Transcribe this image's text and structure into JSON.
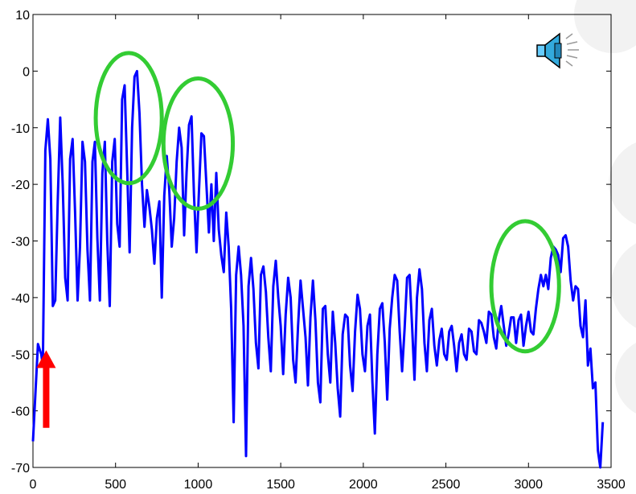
{
  "chart_data": {
    "type": "line",
    "title": "",
    "xlabel": "",
    "ylabel": "",
    "xlim": [
      0,
      3500
    ],
    "ylim": [
      -70,
      10
    ],
    "x_ticks": [
      0,
      500,
      1000,
      1500,
      2000,
      2500,
      3000,
      3500
    ],
    "y_ticks": [
      10,
      0,
      -10,
      -20,
      -30,
      -40,
      -50,
      -60,
      -70
    ],
    "grid": false,
    "legend": "none",
    "series": [
      {
        "color": "#0000ff",
        "points": [
          [
            0,
            -65.4
          ],
          [
            30,
            -48.2
          ],
          [
            50,
            -50.0
          ],
          [
            60,
            -52.0
          ],
          [
            75,
            -14.0
          ],
          [
            90,
            -8.5
          ],
          [
            105,
            -15.5
          ],
          [
            120,
            -41.5
          ],
          [
            135,
            -40.5
          ],
          [
            150,
            -23.0
          ],
          [
            165,
            -8.2
          ],
          [
            180,
            -20.0
          ],
          [
            195,
            -36.5
          ],
          [
            210,
            -40.5
          ],
          [
            225,
            -15.5
          ],
          [
            240,
            -12.0
          ],
          [
            255,
            -25.0
          ],
          [
            270,
            -40.5
          ],
          [
            285,
            -31.0
          ],
          [
            300,
            -12.5
          ],
          [
            315,
            -16.0
          ],
          [
            330,
            -31.5
          ],
          [
            345,
            -40.5
          ],
          [
            360,
            -16.0
          ],
          [
            375,
            -12.5
          ],
          [
            390,
            -29.5
          ],
          [
            405,
            -40.5
          ],
          [
            420,
            -18.0
          ],
          [
            435,
            -12.5
          ],
          [
            450,
            -30.0
          ],
          [
            465,
            -41.5
          ],
          [
            480,
            -16.0
          ],
          [
            495,
            -12.0
          ],
          [
            510,
            -27.0
          ],
          [
            525,
            -31.0
          ],
          [
            540,
            -5.0
          ],
          [
            555,
            -2.5
          ],
          [
            570,
            -17.0
          ],
          [
            585,
            -32.0
          ],
          [
            600,
            -10.0
          ],
          [
            615,
            -1.0
          ],
          [
            630,
            0.0
          ],
          [
            645,
            -7.5
          ],
          [
            660,
            -20.0
          ],
          [
            675,
            -27.5
          ],
          [
            690,
            -21.0
          ],
          [
            705,
            -24.0
          ],
          [
            720,
            -28.0
          ],
          [
            735,
            -34.0
          ],
          [
            750,
            -26.0
          ],
          [
            765,
            -23.0
          ],
          [
            780,
            -40.0
          ],
          [
            795,
            -22.0
          ],
          [
            810,
            -15.0
          ],
          [
            825,
            -21.0
          ],
          [
            840,
            -31.0
          ],
          [
            855,
            -26.0
          ],
          [
            870,
            -16.0
          ],
          [
            885,
            -10.0
          ],
          [
            900,
            -13.5
          ],
          [
            915,
            -29.0
          ],
          [
            930,
            -18.0
          ],
          [
            945,
            -9.5
          ],
          [
            960,
            -8.0
          ],
          [
            975,
            -22.0
          ],
          [
            990,
            -32.0
          ],
          [
            1005,
            -21.0
          ],
          [
            1020,
            -11.0
          ],
          [
            1035,
            -11.5
          ],
          [
            1050,
            -20.0
          ],
          [
            1065,
            -28.5
          ],
          [
            1080,
            -20.0
          ],
          [
            1095,
            -30.0
          ],
          [
            1110,
            -18.0
          ],
          [
            1125,
            -28.0
          ],
          [
            1140,
            -32.5
          ],
          [
            1155,
            -35.5
          ],
          [
            1170,
            -25.0
          ],
          [
            1185,
            -31.0
          ],
          [
            1200,
            -42.0
          ],
          [
            1215,
            -62.0
          ],
          [
            1230,
            -36.0
          ],
          [
            1245,
            -31.0
          ],
          [
            1260,
            -36.0
          ],
          [
            1275,
            -45.0
          ],
          [
            1290,
            -68.0
          ],
          [
            1305,
            -38.0
          ],
          [
            1320,
            -33.0
          ],
          [
            1335,
            -38.5
          ],
          [
            1350,
            -48.0
          ],
          [
            1365,
            -52.5
          ],
          [
            1380,
            -36.0
          ],
          [
            1395,
            -34.5
          ],
          [
            1410,
            -39.0
          ],
          [
            1425,
            -47.0
          ],
          [
            1440,
            -53.0
          ],
          [
            1455,
            -38.0
          ],
          [
            1470,
            -33.5
          ],
          [
            1485,
            -40.0
          ],
          [
            1500,
            -45.0
          ],
          [
            1515,
            -53.5
          ],
          [
            1530,
            -43.0
          ],
          [
            1545,
            -36.5
          ],
          [
            1560,
            -40.0
          ],
          [
            1575,
            -51.0
          ],
          [
            1590,
            -55.0
          ],
          [
            1605,
            -45.0
          ],
          [
            1620,
            -37.0
          ],
          [
            1635,
            -42.0
          ],
          [
            1650,
            -47.0
          ],
          [
            1665,
            -55.5
          ],
          [
            1680,
            -43.5
          ],
          [
            1695,
            -37.0
          ],
          [
            1710,
            -44.0
          ],
          [
            1725,
            -55.0
          ],
          [
            1740,
            -58.5
          ],
          [
            1755,
            -42.0
          ],
          [
            1770,
            -41.5
          ],
          [
            1785,
            -50.0
          ],
          [
            1800,
            -55.0
          ],
          [
            1815,
            -42.5
          ],
          [
            1830,
            -48.0
          ],
          [
            1845,
            -56.0
          ],
          [
            1860,
            -61.0
          ],
          [
            1875,
            -46.5
          ],
          [
            1890,
            -43.0
          ],
          [
            1905,
            -43.5
          ],
          [
            1920,
            -52.0
          ],
          [
            1935,
            -56.5
          ],
          [
            1950,
            -46.0
          ],
          [
            1965,
            -39.5
          ],
          [
            1980,
            -42.0
          ],
          [
            1995,
            -50.0
          ],
          [
            2010,
            -53.0
          ],
          [
            2025,
            -45.0
          ],
          [
            2040,
            -43.0
          ],
          [
            2055,
            -55.0
          ],
          [
            2070,
            -64.0
          ],
          [
            2085,
            -50.0
          ],
          [
            2100,
            -42.0
          ],
          [
            2115,
            -41.0
          ],
          [
            2130,
            -48.0
          ],
          [
            2145,
            -58.0
          ],
          [
            2160,
            -45.5
          ],
          [
            2175,
            -40.0
          ],
          [
            2190,
            -36.0
          ],
          [
            2205,
            -37.0
          ],
          [
            2220,
            -46.0
          ],
          [
            2235,
            -53.0
          ],
          [
            2250,
            -45.5
          ],
          [
            2265,
            -36.5
          ],
          [
            2280,
            -36.0
          ],
          [
            2295,
            -45.0
          ],
          [
            2310,
            -54.5
          ],
          [
            2325,
            -40.0
          ],
          [
            2340,
            -35.0
          ],
          [
            2355,
            -38.5
          ],
          [
            2370,
            -48.0
          ],
          [
            2385,
            -53.0
          ],
          [
            2400,
            -44.0
          ],
          [
            2415,
            -42.0
          ],
          [
            2430,
            -48.5
          ],
          [
            2445,
            -52.0
          ],
          [
            2460,
            -47.5
          ],
          [
            2475,
            -45.5
          ],
          [
            2490,
            -50.0
          ],
          [
            2505,
            -51.0
          ],
          [
            2520,
            -46.0
          ],
          [
            2535,
            -45.0
          ],
          [
            2550,
            -48.5
          ],
          [
            2565,
            -53.0
          ],
          [
            2580,
            -48.0
          ],
          [
            2595,
            -46.5
          ],
          [
            2610,
            -50.0
          ],
          [
            2625,
            -51.0
          ],
          [
            2640,
            -45.5
          ],
          [
            2655,
            -46.0
          ],
          [
            2670,
            -49.5
          ],
          [
            2685,
            -50.0
          ],
          [
            2700,
            -44.0
          ],
          [
            2715,
            -44.5
          ],
          [
            2730,
            -46.0
          ],
          [
            2745,
            -48.0
          ],
          [
            2760,
            -42.5
          ],
          [
            2775,
            -43.0
          ],
          [
            2790,
            -47.0
          ],
          [
            2805,
            -49.0
          ],
          [
            2820,
            -44.0
          ],
          [
            2835,
            -41.5
          ],
          [
            2850,
            -45.0
          ],
          [
            2865,
            -48.5
          ],
          [
            2880,
            -46.5
          ],
          [
            2895,
            -43.5
          ],
          [
            2910,
            -43.5
          ],
          [
            2925,
            -48.0
          ],
          [
            2940,
            -44.0
          ],
          [
            2955,
            -43.0
          ],
          [
            2970,
            -48.5
          ],
          [
            2985,
            -45.0
          ],
          [
            3000,
            -42.5
          ],
          [
            3015,
            -46.0
          ],
          [
            3030,
            -46.5
          ],
          [
            3045,
            -42.0
          ],
          [
            3060,
            -38.5
          ],
          [
            3075,
            -36.0
          ],
          [
            3090,
            -38.0
          ],
          [
            3105,
            -36.0
          ],
          [
            3120,
            -38.5
          ],
          [
            3135,
            -33.0
          ],
          [
            3150,
            -31.0
          ],
          [
            3165,
            -31.5
          ],
          [
            3180,
            -32.5
          ],
          [
            3195,
            -35.5
          ],
          [
            3210,
            -29.5
          ],
          [
            3225,
            -29.0
          ],
          [
            3240,
            -31.0
          ],
          [
            3255,
            -37.0
          ],
          [
            3270,
            -40.5
          ],
          [
            3285,
            -38.0
          ],
          [
            3300,
            -38.5
          ],
          [
            3315,
            -45.0
          ],
          [
            3330,
            -47.0
          ],
          [
            3345,
            -40.5
          ],
          [
            3360,
            -52.0
          ],
          [
            3375,
            -49.0
          ],
          [
            3390,
            -56.0
          ],
          [
            3405,
            -55.0
          ],
          [
            3420,
            -67.0
          ],
          [
            3435,
            -70.0
          ],
          [
            3450,
            -62.0
          ]
        ]
      }
    ],
    "annotations": [
      {
        "shape": "ellipse",
        "color": "#33cc33",
        "center": [
          580,
          -8.3
        ],
        "radius_x": 200,
        "radius_y": 11.5
      },
      {
        "shape": "ellipse",
        "color": "#33cc33",
        "center": [
          1000,
          -12.8
        ],
        "radius_x": 210,
        "radius_y": 11.5
      },
      {
        "shape": "ellipse",
        "color": "#33cc33",
        "center": [
          2980,
          -38.0
        ],
        "radius_x": 205,
        "radius_y": 11.5
      },
      {
        "shape": "arrow",
        "color": "#ff0000",
        "x": 80,
        "from_y": -63.0,
        "to_y": -49.3
      }
    ]
  },
  "icons": {
    "speaker": "speaker-sound-icon"
  },
  "decoration": {
    "background_circle_color": "#f2f2f2"
  }
}
